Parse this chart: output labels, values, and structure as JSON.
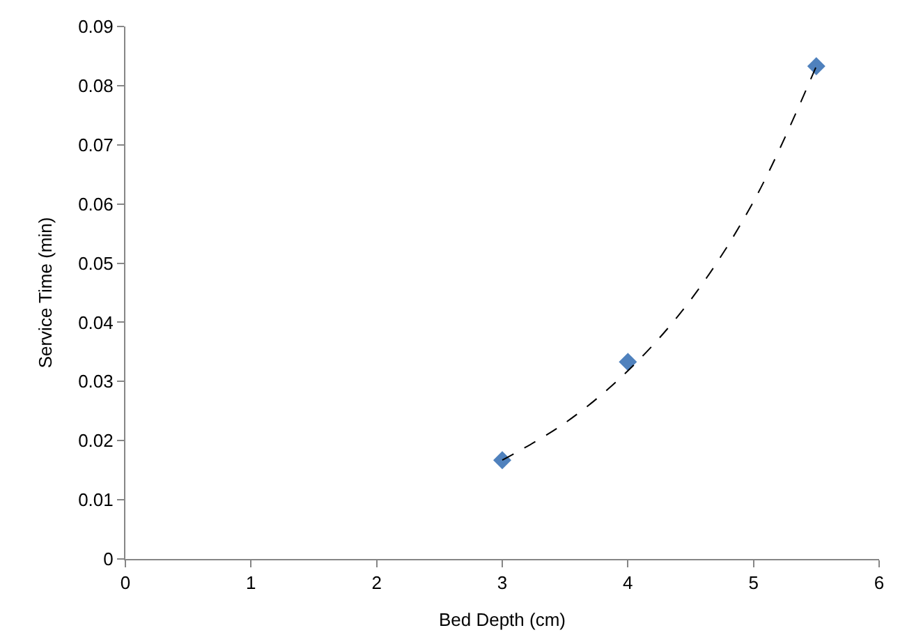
{
  "chart_data": {
    "type": "scatter",
    "xlabel": "Bed Depth (cm)",
    "ylabel": "Service Time (min)",
    "xlim": [
      0,
      6
    ],
    "xticks": [
      0,
      1,
      2,
      3,
      4,
      5,
      6
    ],
    "ylim": [
      0,
      0.09
    ],
    "yticks": [
      0,
      0.01,
      0.02,
      0.03,
      0.04,
      0.05,
      0.06,
      0.07,
      0.08,
      0.09
    ],
    "grid": false,
    "series": [
      {
        "color": "#4f81bd",
        "marker": "diamond",
        "x": [
          3,
          4,
          5.5
        ],
        "values": [
          0.0167,
          0.0333,
          0.0833
        ]
      },
      {
        "type": "line",
        "color": "#000000",
        "line_style": "dashed",
        "marker": "none",
        "x": [
          3,
          3.5,
          4,
          4.5,
          5,
          5.5
        ],
        "values": [
          0.0167,
          0.023,
          0.0318,
          0.0438,
          0.0604,
          0.0833
        ]
      }
    ]
  }
}
